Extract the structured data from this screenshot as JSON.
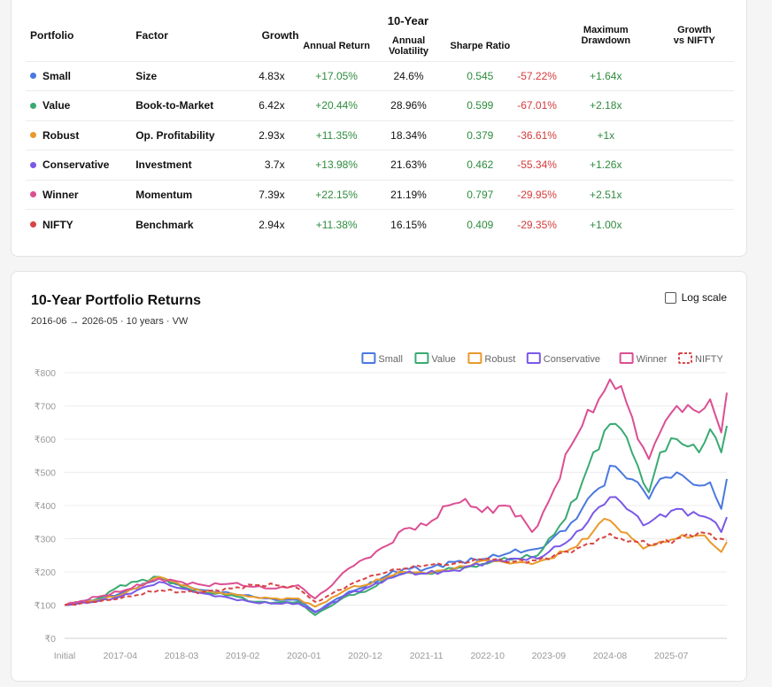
{
  "table": {
    "headers": {
      "portfolio": "Portfolio",
      "factor": "Factor",
      "growth": "Growth",
      "group": "10-Year",
      "annual_return": "Annual Return",
      "annual_volatility_1": "Annual",
      "annual_volatility_2": "Volatility",
      "sharpe": "Sharpe Ratio",
      "max_dd_1": "Maximum",
      "max_dd_2": "Drawdown",
      "vs_nifty_1": "Growth",
      "vs_nifty_2": "vs NIFTY"
    },
    "rows": [
      {
        "name": "Small",
        "color": "#4a78e0",
        "factor": "Size",
        "growth": "4.83x",
        "annual_return": "+17.05%",
        "volatility": "24.6%",
        "sharpe": "0.545",
        "max_dd": "-57.22%",
        "vs_nifty": "+1.64x"
      },
      {
        "name": "Value",
        "color": "#3aaa72",
        "factor": "Book-to-Market",
        "growth": "6.42x",
        "annual_return": "+20.44%",
        "volatility": "28.96%",
        "sharpe": "0.599",
        "max_dd": "-67.01%",
        "vs_nifty": "+2.18x"
      },
      {
        "name": "Robust",
        "color": "#e89a2c",
        "factor": "Op. Profitability",
        "growth": "2.93x",
        "annual_return": "+11.35%",
        "volatility": "18.34%",
        "sharpe": "0.379",
        "max_dd": "-36.61%",
        "vs_nifty": "+1x"
      },
      {
        "name": "Conservative",
        "color": "#7b58e8",
        "factor": "Investment",
        "growth": "3.7x",
        "annual_return": "+13.98%",
        "volatility": "21.63%",
        "sharpe": "0.462",
        "max_dd": "-55.34%",
        "vs_nifty": "+1.26x"
      },
      {
        "name": "Winner",
        "color": "#dc4e92",
        "factor": "Momentum",
        "growth": "7.39x",
        "annual_return": "+22.15%",
        "volatility": "21.19%",
        "sharpe": "0.797",
        "max_dd": "-29.95%",
        "vs_nifty": "+2.51x"
      },
      {
        "name": "NIFTY",
        "color": "#d94444",
        "factor": "Benchmark",
        "growth": "2.94x",
        "annual_return": "+11.38%",
        "volatility": "16.15%",
        "sharpe": "0.409",
        "max_dd": "-29.35%",
        "vs_nifty": "+1.00x"
      }
    ]
  },
  "chart_panel": {
    "title": "10-Year Portfolio Returns",
    "subtitle": "2016-06 → 2026-05 · 10 years · VW",
    "log_scale_label": "Log scale",
    "log_scale_checked": false
  },
  "chart_data": {
    "type": "line",
    "title": "10-Year Portfolio Returns",
    "ylim": [
      0,
      800
    ],
    "yticks": [
      "₹0",
      "₹100",
      "₹200",
      "₹300",
      "₹400",
      "₹500",
      "₹600",
      "₹700",
      "₹800"
    ],
    "xtick_labels": [
      "Initial",
      "2017-04",
      "2018-03",
      "2019-02",
      "2020-01",
      "2020-12",
      "2021-11",
      "2022-10",
      "2023-09",
      "2024-08",
      "2025-07"
    ],
    "xtick_index": [
      0,
      10,
      21,
      32,
      43,
      54,
      65,
      76,
      87,
      98,
      109
    ],
    "n_points": 120,
    "grid": true,
    "legend_position": "top-right",
    "series": [
      {
        "name": "Small",
        "color": "#4a78e0",
        "dashed": false,
        "anchors": [
          [
            0,
            100
          ],
          [
            6,
            120
          ],
          [
            10,
            135
          ],
          [
            17,
            180
          ],
          [
            21,
            160
          ],
          [
            25,
            145
          ],
          [
            30,
            135
          ],
          [
            34,
            125
          ],
          [
            38,
            115
          ],
          [
            42,
            115
          ],
          [
            45,
            80
          ],
          [
            47,
            100
          ],
          [
            51,
            140
          ],
          [
            54,
            155
          ],
          [
            58,
            190
          ],
          [
            61,
            210
          ],
          [
            65,
            210
          ],
          [
            70,
            230
          ],
          [
            76,
            240
          ],
          [
            80,
            258
          ],
          [
            85,
            270
          ],
          [
            87,
            290
          ],
          [
            92,
            360
          ],
          [
            94,
            420
          ],
          [
            97,
            460
          ],
          [
            98,
            520
          ],
          [
            100,
            500
          ],
          [
            103,
            470
          ],
          [
            105,
            420
          ],
          [
            107,
            480
          ],
          [
            110,
            500
          ],
          [
            114,
            460
          ],
          [
            116,
            470
          ],
          [
            118,
            390
          ],
          [
            119,
            480
          ]
        ]
      },
      {
        "name": "Value",
        "color": "#3aaa72",
        "dashed": false,
        "anchors": [
          [
            0,
            100
          ],
          [
            6,
            118
          ],
          [
            10,
            160
          ],
          [
            17,
            185
          ],
          [
            21,
            155
          ],
          [
            25,
            138
          ],
          [
            30,
            130
          ],
          [
            34,
            110
          ],
          [
            38,
            108
          ],
          [
            42,
            110
          ],
          [
            45,
            70
          ],
          [
            47,
            90
          ],
          [
            51,
            130
          ],
          [
            54,
            140
          ],
          [
            58,
            180
          ],
          [
            61,
            200
          ],
          [
            65,
            195
          ],
          [
            70,
            210
          ],
          [
            74,
            215
          ],
          [
            78,
            235
          ],
          [
            82,
            240
          ],
          [
            85,
            250
          ],
          [
            87,
            300
          ],
          [
            90,
            360
          ],
          [
            93,
            470
          ],
          [
            95,
            560
          ],
          [
            98,
            645
          ],
          [
            100,
            630
          ],
          [
            103,
            520
          ],
          [
            105,
            440
          ],
          [
            107,
            560
          ],
          [
            110,
            600
          ],
          [
            114,
            560
          ],
          [
            116,
            630
          ],
          [
            118,
            560
          ],
          [
            119,
            640
          ]
        ]
      },
      {
        "name": "Robust",
        "color": "#e89a2c",
        "dashed": false,
        "anchors": [
          [
            0,
            100
          ],
          [
            6,
            115
          ],
          [
            10,
            130
          ],
          [
            17,
            185
          ],
          [
            21,
            160
          ],
          [
            25,
            140
          ],
          [
            30,
            135
          ],
          [
            34,
            125
          ],
          [
            38,
            120
          ],
          [
            42,
            120
          ],
          [
            45,
            95
          ],
          [
            47,
            110
          ],
          [
            51,
            150
          ],
          [
            54,
            160
          ],
          [
            58,
            185
          ],
          [
            61,
            200
          ],
          [
            65,
            195
          ],
          [
            70,
            210
          ],
          [
            76,
            235
          ],
          [
            80,
            225
          ],
          [
            85,
            230
          ],
          [
            87,
            240
          ],
          [
            91,
            270
          ],
          [
            94,
            300
          ],
          [
            96,
            345
          ],
          [
            98,
            355
          ],
          [
            100,
            320
          ],
          [
            102,
            300
          ],
          [
            104,
            270
          ],
          [
            106,
            280
          ],
          [
            110,
            300
          ],
          [
            114,
            310
          ],
          [
            116,
            290
          ],
          [
            118,
            260
          ],
          [
            119,
            290
          ]
        ]
      },
      {
        "name": "Conservative",
        "color": "#7b58e8",
        "dashed": false,
        "anchors": [
          [
            0,
            100
          ],
          [
            6,
            112
          ],
          [
            10,
            125
          ],
          [
            17,
            170
          ],
          [
            21,
            150
          ],
          [
            25,
            135
          ],
          [
            30,
            120
          ],
          [
            34,
            108
          ],
          [
            38,
            105
          ],
          [
            42,
            105
          ],
          [
            45,
            78
          ],
          [
            47,
            95
          ],
          [
            51,
            135
          ],
          [
            54,
            150
          ],
          [
            58,
            180
          ],
          [
            61,
            195
          ],
          [
            65,
            195
          ],
          [
            70,
            205
          ],
          [
            76,
            230
          ],
          [
            80,
            240
          ],
          [
            85,
            240
          ],
          [
            87,
            260
          ],
          [
            91,
            300
          ],
          [
            94,
            350
          ],
          [
            96,
            395
          ],
          [
            98,
            425
          ],
          [
            100,
            410
          ],
          [
            102,
            380
          ],
          [
            104,
            340
          ],
          [
            106,
            360
          ],
          [
            110,
            390
          ],
          [
            114,
            370
          ],
          [
            116,
            360
          ],
          [
            118,
            320
          ],
          [
            119,
            365
          ]
        ]
      },
      {
        "name": "Winner",
        "color": "#dc4e92",
        "dashed": false,
        "anchors": [
          [
            0,
            100
          ],
          [
            6,
            125
          ],
          [
            10,
            140
          ],
          [
            17,
            180
          ],
          [
            21,
            170
          ],
          [
            25,
            160
          ],
          [
            30,
            165
          ],
          [
            34,
            155
          ],
          [
            38,
            150
          ],
          [
            42,
            160
          ],
          [
            45,
            120
          ],
          [
            47,
            145
          ],
          [
            51,
            210
          ],
          [
            54,
            240
          ],
          [
            58,
            280
          ],
          [
            61,
            330
          ],
          [
            65,
            340
          ],
          [
            69,
            400
          ],
          [
            72,
            420
          ],
          [
            75,
            380
          ],
          [
            79,
            400
          ],
          [
            82,
            370
          ],
          [
            84,
            320
          ],
          [
            86,
            380
          ],
          [
            88,
            450
          ],
          [
            91,
            580
          ],
          [
            93,
            640
          ],
          [
            96,
            720
          ],
          [
            98,
            780
          ],
          [
            100,
            760
          ],
          [
            103,
            600
          ],
          [
            105,
            540
          ],
          [
            107,
            620
          ],
          [
            110,
            700
          ],
          [
            114,
            680
          ],
          [
            116,
            720
          ],
          [
            118,
            620
          ],
          [
            119,
            740
          ]
        ]
      },
      {
        "name": "NIFTY",
        "color": "#d94444",
        "dashed": true,
        "anchors": [
          [
            0,
            100
          ],
          [
            6,
            110
          ],
          [
            10,
            120
          ],
          [
            17,
            145
          ],
          [
            21,
            140
          ],
          [
            25,
            140
          ],
          [
            30,
            150
          ],
          [
            34,
            160
          ],
          [
            38,
            160
          ],
          [
            42,
            150
          ],
          [
            45,
            110
          ],
          [
            47,
            125
          ],
          [
            51,
            160
          ],
          [
            54,
            180
          ],
          [
            58,
            200
          ],
          [
            61,
            210
          ],
          [
            65,
            220
          ],
          [
            70,
            225
          ],
          [
            76,
            240
          ],
          [
            80,
            230
          ],
          [
            85,
            235
          ],
          [
            88,
            250
          ],
          [
            92,
            270
          ],
          [
            96,
            300
          ],
          [
            98,
            315
          ],
          [
            100,
            300
          ],
          [
            103,
            290
          ],
          [
            105,
            280
          ],
          [
            107,
            285
          ],
          [
            110,
            300
          ],
          [
            114,
            320
          ],
          [
            116,
            315
          ],
          [
            118,
            300
          ],
          [
            119,
            295
          ]
        ]
      }
    ]
  }
}
